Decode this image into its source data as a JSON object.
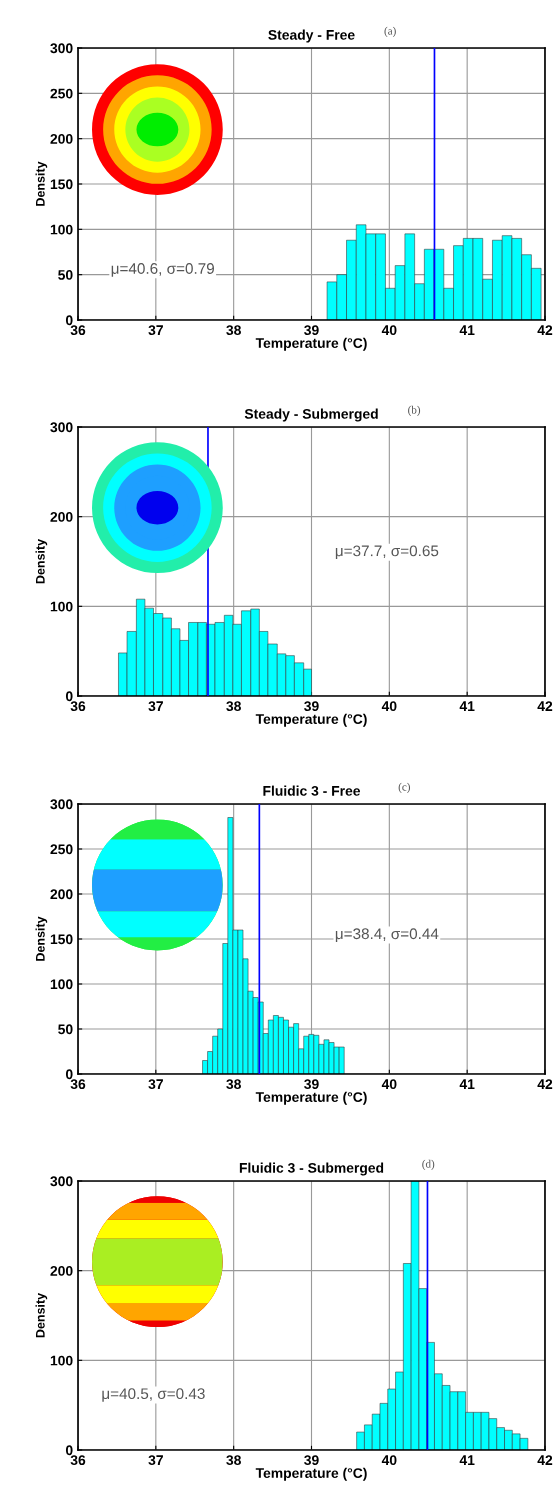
{
  "chart_data": [
    {
      "type": "histogram",
      "title": "Steady - Free",
      "xlabel": "Temperature (°C)",
      "ylabel": "Density",
      "annotations": [
        "(a)",
        "μ=40.6, σ=0.79"
      ],
      "color": "#00ffff",
      "bins": [
        39.2,
        39.325,
        39.45,
        39.575,
        39.7,
        39.825,
        39.95,
        40.075,
        40.2,
        40.325,
        40.45,
        40.575,
        40.7,
        40.825,
        40.95,
        41.075,
        41.2,
        41.325,
        41.45,
        41.575,
        41.7,
        41.825,
        41.95
      ],
      "values": [
        42,
        50,
        88,
        105,
        95,
        95,
        35,
        60,
        95,
        40,
        78,
        78,
        35,
        82,
        90,
        90,
        45,
        88,
        93,
        90,
        72,
        57
      ],
      "xlim": [
        36,
        42
      ],
      "xticks": [
        36,
        37,
        38,
        39,
        40,
        41,
        42
      ],
      "ylim": [
        0,
        300
      ],
      "yticks": [
        0,
        50,
        100,
        150,
        200,
        250,
        300
      ],
      "grid": true,
      "ref_lines": [
        {
          "axis": "x",
          "value": 40.58,
          "color": "#0000ff"
        }
      ]
    },
    {
      "type": "histogram",
      "title": "Steady - Submerged",
      "xlabel": "Temperature (°C)",
      "ylabel": "Density",
      "annotations": [
        "(b)",
        "μ=37.7, σ=0.65"
      ],
      "color": "#00ffff",
      "bins": [
        36.52,
        36.63,
        36.75,
        36.86,
        36.97,
        37.09,
        37.2,
        37.31,
        37.42,
        37.54,
        37.65,
        37.76,
        37.88,
        37.99,
        38.1,
        38.22,
        38.33,
        38.44,
        38.56,
        38.67,
        38.78,
        38.9,
        39.0
      ],
      "values": [
        48,
        72,
        108,
        98,
        92,
        87,
        75,
        62,
        82,
        82,
        80,
        82,
        90,
        80,
        95,
        97,
        72,
        58,
        47,
        45,
        37,
        30
      ],
      "xlim": [
        36,
        42
      ],
      "xticks": [
        36,
        37,
        38,
        39,
        40,
        41,
        42
      ],
      "ylim": [
        0,
        300
      ],
      "yticks": [
        0,
        100,
        200,
        300
      ],
      "grid": true,
      "ref_lines": [
        {
          "axis": "x",
          "value": 37.67,
          "color": "#0000ff"
        }
      ]
    },
    {
      "type": "histogram",
      "title": "Fluidic 3 - Free",
      "xlabel": "Temperature (°C)",
      "ylabel": "Density",
      "annotations": [
        "(c)",
        "μ=38.4, σ=0.44"
      ],
      "color": "#00ffff",
      "bins": [
        37.6,
        37.665,
        37.73,
        37.795,
        37.86,
        37.925,
        37.99,
        38.055,
        38.12,
        38.185,
        38.25,
        38.315,
        38.38,
        38.445,
        38.51,
        38.575,
        38.64,
        38.705,
        38.77,
        38.835,
        38.9,
        38.965,
        39.03,
        39.095,
        39.16,
        39.225,
        39.29,
        39.355,
        39.42
      ],
      "values": [
        15,
        25,
        42,
        50,
        145,
        285,
        160,
        160,
        128,
        92,
        85,
        80,
        45,
        60,
        65,
        63,
        60,
        52,
        56,
        28,
        42,
        44,
        43,
        33,
        38,
        35,
        30,
        30
      ],
      "xlim": [
        36,
        42
      ],
      "xticks": [
        36,
        37,
        38,
        39,
        40,
        41,
        42
      ],
      "ylim": [
        0,
        300
      ],
      "yticks": [
        0,
        50,
        100,
        150,
        200,
        250,
        300
      ],
      "grid": true,
      "ref_lines": [
        {
          "axis": "x",
          "value": 38.33,
          "color": "#0000ff"
        }
      ]
    },
    {
      "type": "histogram",
      "title": "Fluidic 3 - Submerged",
      "xlabel": "Temperature (°C)",
      "ylabel": "Density",
      "annotations": [
        "(d)",
        "μ=40.5, σ=0.43"
      ],
      "color": "#00ffff",
      "bins": [
        39.58,
        39.68,
        39.78,
        39.88,
        39.98,
        40.08,
        40.18,
        40.28,
        40.38,
        40.48,
        40.58,
        40.68,
        40.78,
        40.88,
        40.98,
        41.08,
        41.18,
        41.28,
        41.38,
        41.48,
        41.58,
        41.68,
        41.78
      ],
      "values": [
        20,
        28,
        40,
        52,
        68,
        87,
        208,
        300,
        180,
        120,
        85,
        72,
        65,
        65,
        42,
        42,
        42,
        35,
        25,
        22,
        18,
        13
      ],
      "xlim": [
        36,
        42
      ],
      "xticks": [
        36,
        37,
        38,
        39,
        40,
        41,
        42
      ],
      "ylim": [
        0,
        300
      ],
      "yticks": [
        0,
        100,
        200,
        300
      ],
      "grid": true,
      "ref_lines": [
        {
          "axis": "x",
          "value": 40.49,
          "color": "#0000ff"
        }
      ]
    }
  ]
}
